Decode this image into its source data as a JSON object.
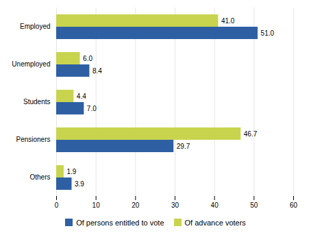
{
  "chart_data": {
    "type": "bar",
    "orientation": "horizontal",
    "categories": [
      "Others",
      "Pensioners",
      "Students",
      "Unemployed",
      "Employed"
    ],
    "series": [
      {
        "name": "Of persons entitled to vote",
        "color": "#2E5FA3",
        "values": [
          3.9,
          29.7,
          7.0,
          8.4,
          51.0
        ],
        "value_labels": [
          "3.9",
          "29.7",
          "7.0",
          "8.4",
          "51.0"
        ]
      },
      {
        "name": "Of advance voters",
        "color": "#C8D44E",
        "values": [
          1.9,
          46.7,
          4.4,
          6.0,
          41.0
        ],
        "value_labels": [
          "1.9",
          "46.7",
          "4.4",
          "6.0",
          "41.0"
        ]
      }
    ],
    "xlim": [
      0,
      60
    ],
    "xticks": [
      0,
      10,
      20,
      30,
      40,
      50,
      60
    ],
    "grid": true,
    "legend": "bottom",
    "data_labels": true
  }
}
